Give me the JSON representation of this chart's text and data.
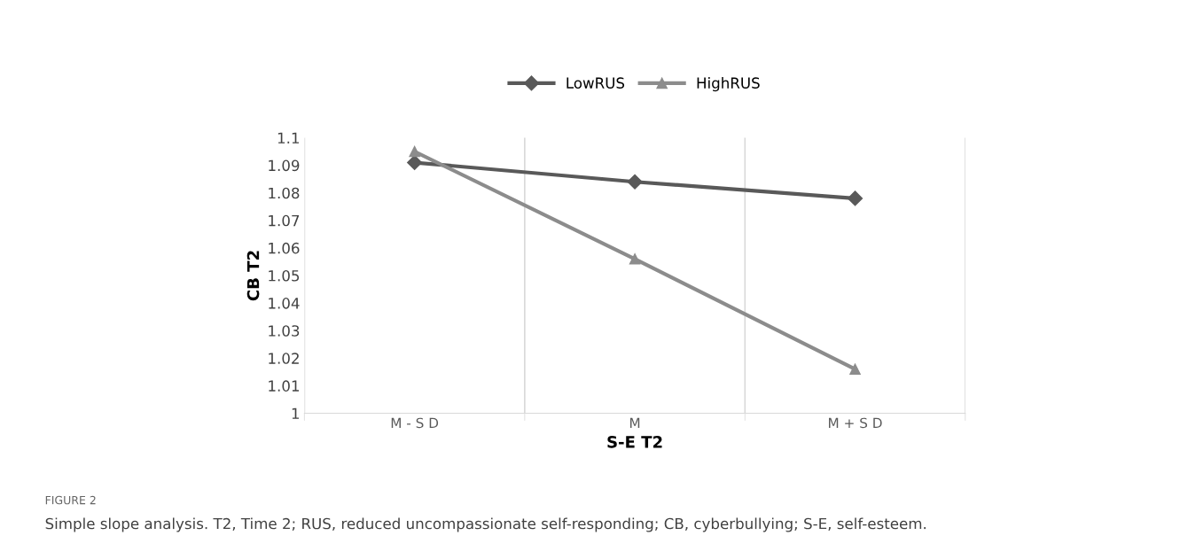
{
  "chart_data": {
    "type": "line",
    "xlabel": "S-E T2",
    "ylabel": "CB T2",
    "categories": [
      "M - S D",
      "M",
      "M + S D"
    ],
    "series": [
      {
        "name": "LowRUS",
        "color": "#595959",
        "values": [
          1.091,
          1.084,
          1.078
        ],
        "marker": "diamond"
      },
      {
        "name": "HighRUS",
        "color": "#8c8c8c",
        "values": [
          1.095,
          1.056,
          1.016
        ],
        "marker": "triangle"
      }
    ],
    "ylim": [
      1,
      1.1
    ],
    "yticks": [
      1,
      1.01,
      1.02,
      1.03,
      1.04,
      1.05,
      1.06,
      1.07,
      1.08,
      1.09,
      1.1
    ],
    "grid": "x",
    "legend": "top",
    "annotations": [
      "FIGURE 2",
      "Simple slope analysis. T2, Time 2; RUS, reduced uncompassionate self-responding; CB, cyberbullying; S-E, self-esteem."
    ]
  }
}
